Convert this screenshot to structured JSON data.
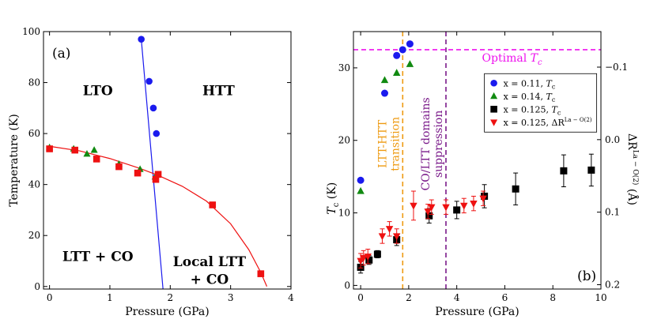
{
  "chart_data": [
    {
      "type": "scatter",
      "panel_label": "(a)",
      "xlabel": "Pressure (GPa)",
      "ylabel": "Temperature (K)",
      "xlim": [
        -0.1,
        4
      ],
      "ylim": [
        -1,
        100
      ],
      "xticks": [
        0,
        1,
        2,
        3,
        4
      ],
      "yticks": [
        0,
        20,
        40,
        60,
        80,
        100
      ],
      "regions": [
        {
          "label": "LTO",
          "x": 0.8,
          "y": 75
        },
        {
          "label": "HTT",
          "x": 2.8,
          "y": 75
        },
        {
          "label": "LTT + CO",
          "x": 0.8,
          "y": 10
        },
        {
          "label": "Local LTT",
          "x": 2.65,
          "y": 8
        },
        {
          "label": "+ CO",
          "x": 2.65,
          "y": 1
        }
      ],
      "colors": {
        "blue": "#1a1aee",
        "green": "#118a11",
        "red": "#ee1111"
      },
      "series": [
        {
          "name": "Tc x=0.11",
          "marker": "circle",
          "color": "#1a1aee",
          "x": [
            1.52,
            1.65,
            1.72,
            1.77
          ],
          "y": [
            97,
            80.5,
            70,
            60
          ]
        },
        {
          "name": "Tc x=0.14",
          "marker": "triangle-up",
          "color": "#118a11",
          "x": [
            0.0,
            0.4,
            0.62,
            0.74,
            1.15,
            1.5,
            1.75
          ],
          "y": [
            54.5,
            54,
            52,
            53.5,
            48,
            46,
            43
          ]
        },
        {
          "name": "transition x=0.125",
          "marker": "square",
          "color": "#ee1111",
          "x": [
            0.0,
            0.42,
            0.78,
            1.15,
            1.46,
            1.76,
            1.8,
            2.7,
            3.5
          ],
          "y": [
            54,
            53.5,
            50,
            47,
            44.5,
            42,
            44,
            32,
            5
          ]
        }
      ],
      "fits": [
        {
          "name": "LTT-HTT boundary",
          "color": "#1a1aee",
          "x": [
            1.52,
            1.88
          ],
          "y": [
            97,
            -1
          ]
        },
        {
          "name": "LTO-LTT boundary",
          "color": "#ee1111",
          "x": [
            0.0,
            0.5,
            1.0,
            1.5,
            1.8,
            2.2,
            2.6,
            3.0,
            3.3,
            3.5,
            3.6
          ],
          "y": [
            55,
            53.2,
            50.2,
            46.3,
            43.6,
            39.3,
            33.5,
            24.6,
            14.5,
            5.5,
            0
          ]
        }
      ]
    },
    {
      "type": "scatter",
      "panel_label": "(b)",
      "xlabel": "Pressure (GPa)",
      "ylabel": "T",
      "ylabel_sub": "c",
      "ylabel_unit": " (K)",
      "y2label": "ΔR",
      "y2label_sup": "La − O(2)",
      "y2label_unit": " (Å)",
      "xlim": [
        -0.3,
        10
      ],
      "ylim": [
        -0.5,
        35
      ],
      "xticks": [
        0,
        2,
        4,
        6,
        8,
        10
      ],
      "yticks": [
        0,
        10,
        20,
        30
      ],
      "y2ticks": [
        {
          "label": "−0.1",
          "y": 30.1
        },
        {
          "label": "0.0",
          "y": 20.1
        },
        {
          "label": "0.1",
          "y": 10.1
        },
        {
          "label": "0.2",
          "y": 0.1
        }
      ],
      "hlines": [
        {
          "label": "Optimal",
          "label_math": "T",
          "label_sub": "c",
          "y": 32.5,
          "color": "#ee11ee"
        }
      ],
      "vlines": [
        {
          "x": 1.75,
          "color": "#ee9a11",
          "text": [
            "LTT-HTT",
            "transition"
          ]
        },
        {
          "x": 3.55,
          "color": "#7a1a8a",
          "text": [
            "CO/LTT domains",
            "suppression"
          ]
        }
      ],
      "legend": {
        "position": "right",
        "entries": [
          {
            "marker": "circle",
            "color": "#1a1aee",
            "text": "x = 0.11, ",
            "math": "T",
            "sub": "c"
          },
          {
            "marker": "triangle-up",
            "color": "#118a11",
            "text": "x = 0.14, ",
            "math": "T",
            "sub": "c"
          },
          {
            "marker": "square",
            "color": "#000000",
            "text": "x = 0.125, ",
            "math": "T",
            "sub": "c"
          },
          {
            "marker": "triangle-down",
            "color": "#ee1111",
            "text": "x = 0.125, ",
            "math": "ΔR",
            "sup": "La − O(2)"
          }
        ]
      },
      "series": [
        {
          "name": "x=0.11 Tc",
          "marker": "circle",
          "color": "#1a1aee",
          "x": [
            0.0,
            1.0,
            1.5,
            1.75,
            2.05
          ],
          "y": [
            14.5,
            26.5,
            31.7,
            32.5,
            33.3
          ]
        },
        {
          "name": "x=0.14 Tc",
          "marker": "triangle-up",
          "color": "#118a11",
          "x": [
            0.0,
            1.0,
            1.5,
            2.05
          ],
          "y": [
            13,
            28.3,
            29.3,
            30.5
          ]
        },
        {
          "name": "x=0.125 Tc",
          "marker": "square",
          "color": "#000000",
          "x": [
            0.0,
            0.35,
            0.7,
            1.5,
            2.85,
            4.0,
            5.15,
            6.45,
            8.45,
            9.6
          ],
          "y": [
            2.5,
            3.5,
            4.3,
            6.3,
            9.6,
            10.4,
            12.3,
            13.3,
            15.8,
            15.9
          ],
          "err": [
            0.8,
            0.6,
            0.5,
            0.8,
            1.0,
            1.2,
            1.6,
            2.2,
            2.2,
            2.2
          ]
        },
        {
          "name": "x=0.125 dR",
          "marker": "triangle-down",
          "color": "#ee1111",
          "x": [
            0.0,
            0.12,
            0.3,
            0.9,
            1.2,
            1.5,
            2.2,
            2.8,
            2.95,
            3.55,
            4.3,
            4.7,
            5.1
          ],
          "y": [
            3.4,
            3.8,
            4.0,
            6.8,
            7.8,
            6.8,
            11.0,
            10.2,
            10.8,
            10.8,
            11.0,
            11.3,
            12.0
          ],
          "err": [
            1.0,
            1.0,
            1.0,
            1.0,
            1.0,
            1.0,
            2.0,
            1.0,
            1.0,
            1.0,
            1.0,
            1.0,
            1.0
          ]
        }
      ]
    }
  ]
}
